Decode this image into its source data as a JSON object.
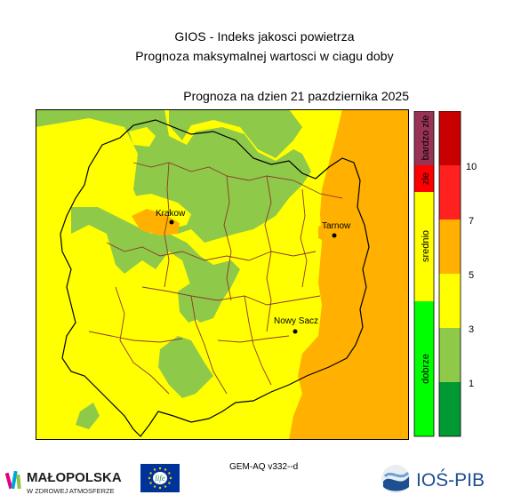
{
  "header": {
    "title": "GIOS - Indeks jakosci powietrza",
    "subtitle": "Prognoza maksymalnej wartosci w ciagu doby",
    "forecast_date": "Prognoza na dzien  21 pazdziernika 2025"
  },
  "map": {
    "colors": {
      "bardzo_dobry": "#1fb03a",
      "dobry": "#8fc94a",
      "umiarkowany": "#ffff00",
      "dostateczny": "#ffb000",
      "zly": "#ff2020",
      "bardzo_zly": "#b40000"
    },
    "cities": [
      {
        "id": "krakow",
        "name": "Krakow"
      },
      {
        "id": "tarnow",
        "name": "Tarnow"
      },
      {
        "id": "nowy-sacz",
        "name": "Nowy Sacz"
      }
    ]
  },
  "legend": {
    "categories": [
      {
        "label": "dobrze",
        "color": "#00ff00"
      },
      {
        "label": "srednio",
        "color": "#ffff00"
      },
      {
        "label": "zle",
        "color": "#ff0000"
      },
      {
        "label": "bardzo zle",
        "color": "#993355"
      }
    ],
    "scale": {
      "colors": [
        "#009933",
        "#8fc94a",
        "#ffff00",
        "#ffb000",
        "#ff2020",
        "#c80000"
      ],
      "ticks": [
        "1",
        "3",
        "5",
        "7",
        "10"
      ]
    }
  },
  "footer": {
    "model": "GEM-AQ v332--d",
    "malopolska_name": "MAŁOPOLSKA",
    "malopolska_tagline": "W ZDROWEJ ATMOSFERZE",
    "eu_text": "life",
    "ios_name": "IOŚ-PIB"
  }
}
